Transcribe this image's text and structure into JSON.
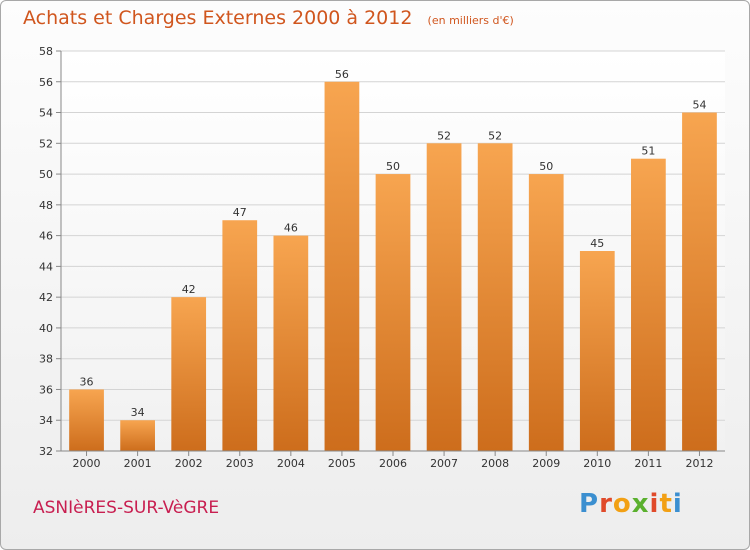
{
  "header": {
    "title": "Achats et Charges Externes 2000 à 2012",
    "subtitle": "(en milliers d'€)"
  },
  "footer": {
    "commune": "ASNIèRES-SUR-VèGRE",
    "brand": {
      "letters": [
        "P",
        "r",
        "o",
        "x",
        "i",
        "t",
        "i"
      ],
      "colors": [
        "#3b8fd0",
        "#e04a2a",
        "#f2a014",
        "#5ab02e",
        "#e04a2a",
        "#f2a014",
        "#3b8fd0"
      ]
    }
  },
  "chart_data": {
    "type": "bar",
    "title": "Achats et Charges Externes 2000 à 2012",
    "subtitle": "(en milliers d'€)",
    "categories": [
      "2000",
      "2001",
      "2002",
      "2003",
      "2004",
      "2005",
      "2006",
      "2007",
      "2008",
      "2009",
      "2010",
      "2011",
      "2012"
    ],
    "values": [
      36,
      34,
      42,
      47,
      46,
      56,
      50,
      52,
      52,
      50,
      45,
      51,
      54
    ],
    "ylim": [
      32,
      58
    ],
    "yticks": [
      32,
      34,
      36,
      38,
      40,
      42,
      44,
      46,
      48,
      50,
      52,
      54,
      56,
      58
    ],
    "grid": true,
    "bar_color_top": "#f7a550",
    "bar_color_bottom": "#cd6d1c"
  }
}
